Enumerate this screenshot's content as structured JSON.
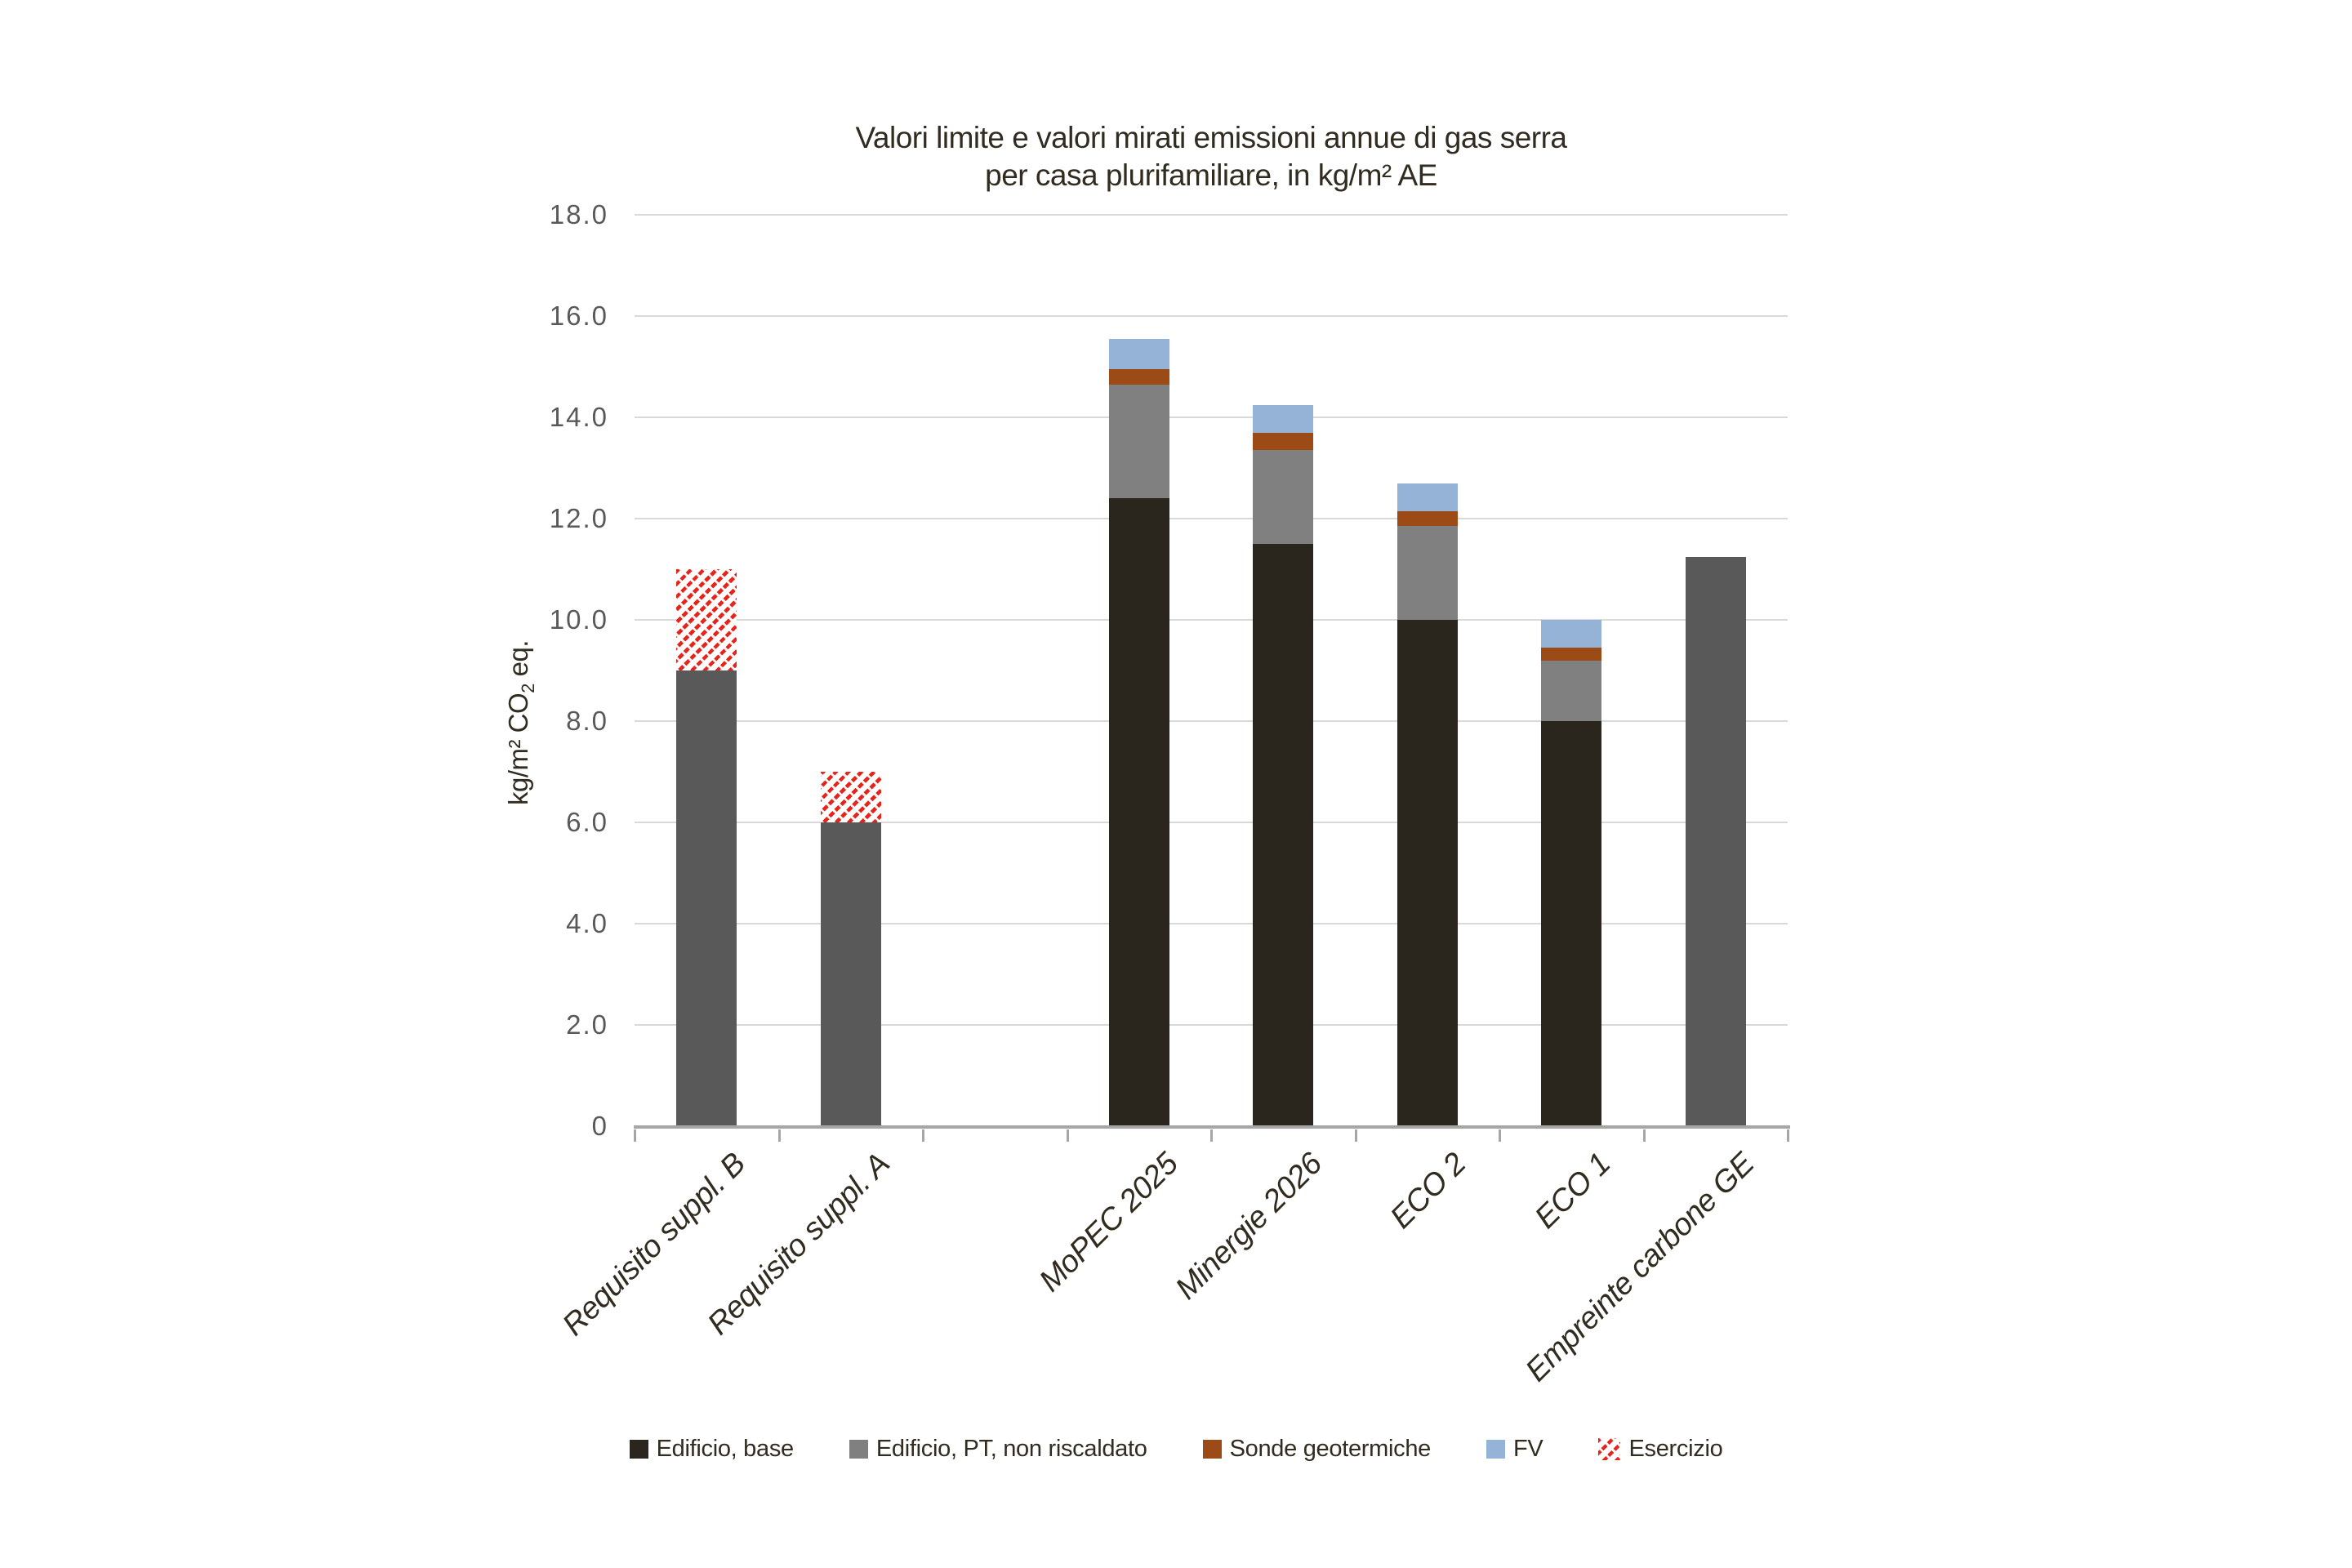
{
  "title": {
    "line1": "Valori limite e valori mirati emissioni annue di gas serra",
    "line2": "per casa plurifamiliare, in kg/m² AE"
  },
  "y_axis": {
    "title_pre": "kg/m² CO",
    "title_sub": "2",
    "title_post": " eq.",
    "tick_labels": [
      "0",
      "2.0",
      "4.0",
      "6.0",
      "8.0",
      "10.0",
      "12.0",
      "14.0",
      "16.0",
      "18.0"
    ]
  },
  "x_axis": {
    "categories": [
      "Requisito suppl. B",
      "Requisito suppl. A",
      "",
      "MoPEC 2025",
      "Minergie 2026",
      "ECO 2",
      "ECO 1",
      "Empreinte carbone GE"
    ]
  },
  "legend": {
    "items": [
      {
        "label": "Edificio, base",
        "role": "edificio_base"
      },
      {
        "label": "Edificio, PT, non riscaldato",
        "role": "edificio_pt"
      },
      {
        "label": "Sonde geotermiche",
        "role": "sonde"
      },
      {
        "label": "FV",
        "role": "fv"
      },
      {
        "label": "Esercizio",
        "role": "esercizio"
      }
    ]
  },
  "colors": {
    "edificio_base": "#2a251d",
    "edificio_pt": "#808080",
    "sonde_geotermiche": "#9c4a16",
    "fv": "#95b3d7",
    "esercizio_red": "#e8231a",
    "limit_bar_gray": "#595959",
    "gridline": "#d9d9d9",
    "axis": "#a6a6a6",
    "text_dark": "#312b20",
    "tick_text": "#595959"
  },
  "chart_data": {
    "type": "bar",
    "stacked": true,
    "title": "Valori limite e valori mirati emissioni annue di gas serra per casa plurifamiliare, in kg/m² AE",
    "ylabel": "kg/m² CO2 eq.",
    "ylim": [
      0,
      18
    ],
    "ytick_step": 2,
    "grid": true,
    "legend_position": "bottom",
    "categories": [
      "Requisito suppl. B",
      "Requisito suppl. A",
      "",
      "MoPEC 2025",
      "Minergie 2026",
      "ECO 2",
      "ECO 1",
      "Empreinte carbone GE"
    ],
    "series": [
      {
        "name": "",
        "role": "limite",
        "note": "valore limite / grigio scuro",
        "values": [
          9.0,
          6.0,
          0,
          0,
          0,
          0,
          0,
          11.25
        ]
      },
      {
        "name": "Edificio, base",
        "role": "edificio_base",
        "values": [
          0,
          0,
          0,
          12.4,
          11.5,
          10.0,
          8.0,
          0
        ]
      },
      {
        "name": "Edificio, PT, non riscaldato",
        "role": "edificio_pt",
        "values": [
          0,
          0,
          0,
          2.25,
          1.85,
          1.85,
          1.2,
          0
        ]
      },
      {
        "name": "Sonde geotermiche",
        "role": "sonde",
        "values": [
          0,
          0,
          0,
          0.3,
          0.35,
          0.3,
          0.25,
          0
        ]
      },
      {
        "name": "FV",
        "role": "fv",
        "values": [
          0,
          0,
          0,
          0.6,
          0.55,
          0.55,
          0.55,
          0
        ]
      },
      {
        "name": "Esercizio",
        "role": "esercizio",
        "values": [
          2.0,
          1.0,
          0,
          0,
          0,
          0,
          0,
          0
        ]
      }
    ],
    "stack_totals": [
      11.0,
      7.0,
      0,
      15.55,
      14.25,
      12.7,
      10.0,
      11.25
    ]
  }
}
